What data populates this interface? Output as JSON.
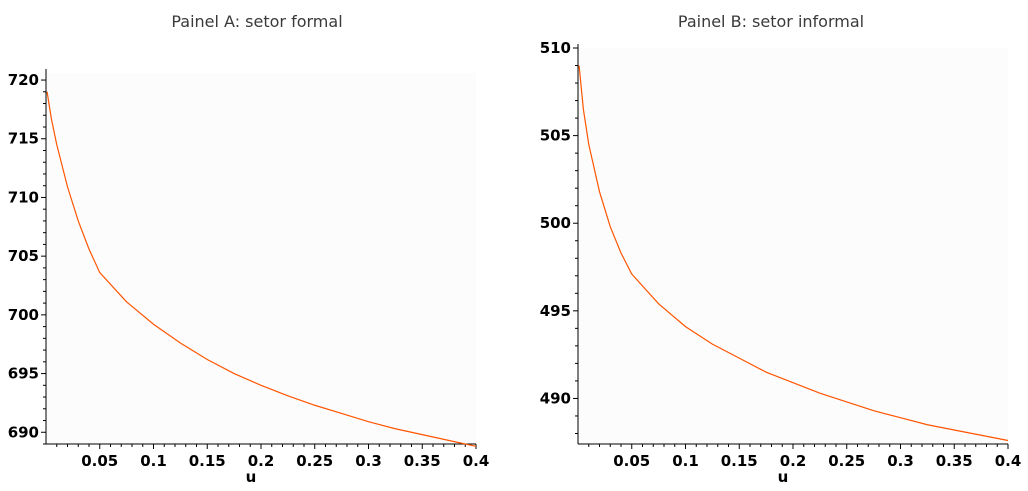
{
  "chart_data": [
    {
      "type": "line",
      "title": "Painel A: setor formal",
      "xlabel": "u",
      "ylabel": "",
      "xlim": [
        0.0,
        0.4
      ],
      "ylim": [
        689.0,
        720.6
      ],
      "xticks": [
        "0.05",
        "0.1",
        "0.15",
        "0.2",
        "0.25",
        "0.3",
        "0.35",
        "0.4"
      ],
      "yticks": [
        "690",
        "695",
        "700",
        "705",
        "710",
        "715",
        "720"
      ],
      "line_color": "#ff5500",
      "plot_background": "#fcfcfc",
      "series": [
        {
          "x": [
            0.001,
            0.005,
            0.01,
            0.02,
            0.03,
            0.04,
            0.05,
            0.075,
            0.1,
            0.125,
            0.15,
            0.175,
            0.2,
            0.225,
            0.25,
            0.275,
            0.3,
            0.325,
            0.35,
            0.375,
            0.4
          ],
          "values": [
            719.0,
            716.7,
            714.5,
            710.9,
            708.0,
            705.6,
            703.6,
            701.1,
            699.2,
            697.6,
            696.2,
            695.0,
            694.0,
            693.1,
            692.3,
            691.6,
            690.9,
            690.3,
            689.8,
            689.3,
            688.8
          ]
        }
      ]
    },
    {
      "type": "line",
      "title": "Painel B: setor informal",
      "xlabel": "u",
      "ylabel": "",
      "xlim": [
        0.0,
        0.4
      ],
      "ylim": [
        487.4,
        510.0
      ],
      "xticks": [
        "0.05",
        "0.1",
        "0.15",
        "0.2",
        "0.25",
        "0.3",
        "0.35",
        "0.4"
      ],
      "yticks": [
        "490",
        "495",
        "500",
        "505",
        "510"
      ],
      "line_color": "#ff5500",
      "plot_background": "#fcfcfc",
      "series": [
        {
          "x": [
            0.001,
            0.005,
            0.01,
            0.02,
            0.03,
            0.04,
            0.05,
            0.075,
            0.1,
            0.125,
            0.15,
            0.175,
            0.2,
            0.225,
            0.25,
            0.275,
            0.3,
            0.325,
            0.35,
            0.375,
            0.4
          ],
          "values": [
            509.0,
            506.5,
            504.5,
            501.8,
            499.8,
            498.3,
            497.1,
            495.4,
            494.1,
            493.1,
            492.3,
            491.5,
            490.9,
            490.3,
            489.8,
            489.3,
            488.9,
            488.5,
            488.2,
            487.9,
            487.6
          ]
        }
      ]
    }
  ]
}
